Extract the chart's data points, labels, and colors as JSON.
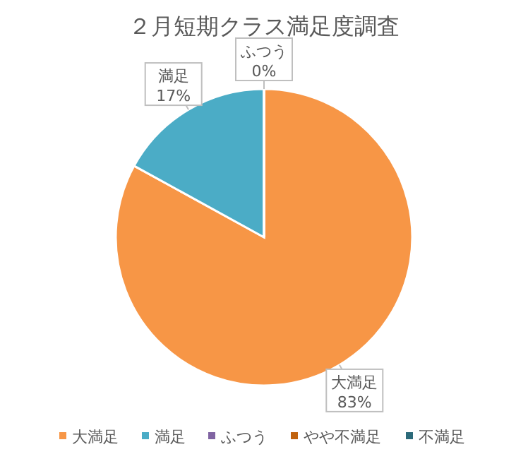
{
  "chart_data": {
    "type": "pie",
    "title": "２月短期クラス満足度調査",
    "categories": [
      "大満足",
      "満足",
      "ふつう",
      "やや不満足",
      "不満足"
    ],
    "values": [
      83,
      17,
      0,
      0,
      0
    ],
    "colors": [
      "#f79646",
      "#4bacc6",
      "#8064a2",
      "#c0620e",
      "#2c6a7a"
    ],
    "value_labels": [
      "83%",
      "17%",
      "0%",
      null,
      null
    ],
    "legend": "bottom"
  }
}
